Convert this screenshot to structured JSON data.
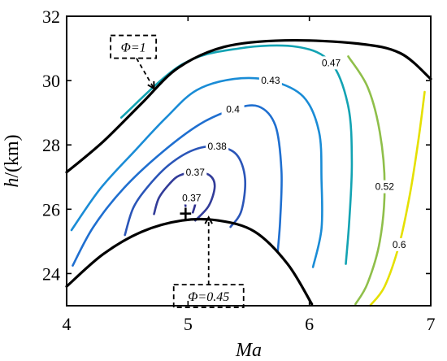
{
  "chart_data": {
    "type": "contour",
    "xlabel": "Ma",
    "ylabel_symbol": "h",
    "ylabel_unit": "/(km)",
    "xlim": [
      4,
      7
    ],
    "ylim": [
      23,
      32
    ],
    "xticks": [
      4,
      5,
      6,
      7
    ],
    "yticks": [
      24,
      26,
      28,
      30,
      32
    ],
    "grid": false,
    "contour_levels": [
      {
        "label": "0.37",
        "color": "#2e2f8f",
        "points": [
          [
            4.98,
            26.1
          ],
          [
            4.98,
            26.25
          ],
          [
            5.03,
            26.35
          ],
          [
            5.06,
            26.2
          ],
          [
            5.04,
            25.9
          ]
        ]
      },
      {
        "label": "0.37",
        "color": "#323c99",
        "points": [
          [
            4.72,
            25.85
          ],
          [
            4.76,
            26.35
          ],
          [
            4.85,
            26.8
          ],
          [
            4.93,
            27.05
          ],
          [
            5.06,
            27.15
          ],
          [
            5.18,
            27.05
          ],
          [
            5.22,
            26.7
          ],
          [
            5.17,
            26.1
          ],
          [
            5.06,
            25.65
          ]
        ]
      },
      {
        "label": "0.38",
        "color": "#2a55b8",
        "points": [
          [
            4.48,
            25.2
          ],
          [
            4.55,
            26.05
          ],
          [
            4.68,
            26.75
          ],
          [
            4.85,
            27.4
          ],
          [
            5.05,
            27.85
          ],
          [
            5.24,
            27.95
          ],
          [
            5.4,
            27.7
          ],
          [
            5.47,
            26.95
          ],
          [
            5.44,
            25.95
          ],
          [
            5.35,
            25.45
          ]
        ]
      },
      {
        "label": "0.4",
        "color": "#1f6fd0",
        "points": [
          [
            4.05,
            24.25
          ],
          [
            4.22,
            25.45
          ],
          [
            4.47,
            26.65
          ],
          [
            4.78,
            27.75
          ],
          [
            5.1,
            28.65
          ],
          [
            5.37,
            29.1
          ],
          [
            5.58,
            29.2
          ],
          [
            5.72,
            28.6
          ],
          [
            5.77,
            27.2
          ],
          [
            5.76,
            25.7
          ],
          [
            5.74,
            24.7
          ]
        ]
      },
      {
        "label": "0.43",
        "color": "#1a8cd6",
        "points": [
          [
            4.04,
            25.35
          ],
          [
            4.28,
            26.65
          ],
          [
            4.57,
            27.85
          ],
          [
            4.82,
            28.85
          ],
          [
            5.07,
            29.7
          ],
          [
            5.38,
            30.05
          ],
          [
            5.68,
            30.0
          ],
          [
            5.95,
            29.5
          ],
          [
            6.08,
            28.4
          ],
          [
            6.1,
            26.9
          ],
          [
            6.1,
            25.4
          ],
          [
            6.03,
            24.2
          ]
        ]
      },
      {
        "label": "0.47",
        "color": "#13a3b3",
        "points": [
          [
            4.45,
            28.85
          ],
          [
            4.95,
            30.5
          ],
          [
            5.42,
            31.0
          ],
          [
            5.9,
            31.05
          ],
          [
            6.18,
            30.55
          ],
          [
            6.32,
            29.2
          ],
          [
            6.35,
            27.5
          ],
          [
            6.33,
            25.7
          ],
          [
            6.3,
            24.3
          ]
        ]
      },
      {
        "label": "0.52",
        "color": "#8fbf4a",
        "points": [
          [
            6.32,
            30.75
          ],
          [
            6.48,
            29.8
          ],
          [
            6.58,
            28.4
          ],
          [
            6.62,
            26.7
          ],
          [
            6.58,
            25.0
          ],
          [
            6.48,
            23.7
          ],
          [
            6.38,
            23.05
          ]
        ]
      },
      {
        "label": "0.6",
        "color": "#e5e000",
        "points": [
          [
            6.95,
            29.65
          ],
          [
            6.9,
            28.2
          ],
          [
            6.83,
            26.5
          ],
          [
            6.74,
            24.9
          ],
          [
            6.62,
            23.6
          ],
          [
            6.5,
            23.0
          ]
        ]
      }
    ],
    "boundaries": [
      {
        "label": "Φ=1",
        "points": [
          [
            4.0,
            27.15
          ],
          [
            4.3,
            28.1
          ],
          [
            4.62,
            29.3
          ],
          [
            4.92,
            30.4
          ],
          [
            5.3,
            31.05
          ],
          [
            5.8,
            31.25
          ],
          [
            6.4,
            31.15
          ],
          [
            6.75,
            30.85
          ],
          [
            7.0,
            30.05
          ]
        ]
      },
      {
        "label": "Φ=0.45",
        "points": [
          [
            4.0,
            23.6
          ],
          [
            4.3,
            24.6
          ],
          [
            4.62,
            25.3
          ],
          [
            4.95,
            25.65
          ],
          [
            5.25,
            25.65
          ],
          [
            5.55,
            25.3
          ],
          [
            5.82,
            24.3
          ],
          [
            6.02,
            23.05
          ]
        ]
      }
    ],
    "optimum_marker": {
      "x": 4.98,
      "y": 25.9,
      "symbol": "+"
    },
    "annotations": [
      {
        "text": "Φ=1",
        "x": 4.55,
        "y": 31.05,
        "arrow_to": [
          4.72,
          29.75
        ]
      },
      {
        "text": "Φ=0.45",
        "x": 5.17,
        "y": 23.3,
        "arrow_to": [
          5.17,
          25.75
        ]
      }
    ]
  }
}
